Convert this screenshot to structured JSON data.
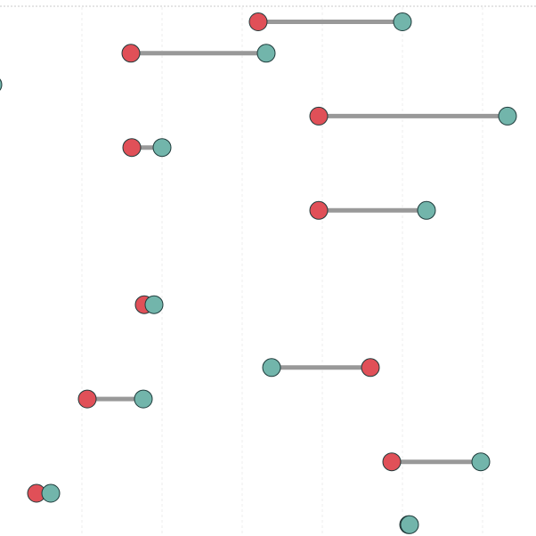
{
  "chart_data": {
    "type": "dumbbell",
    "x_range": [
      0,
      602
    ],
    "gridlines_x": [
      92,
      182,
      272,
      362,
      452,
      542
    ],
    "grid": true,
    "legend": "none",
    "colors": {
      "start": "#e05058",
      "end": "#72b5ab",
      "connector": "#999999"
    },
    "rows": [
      {
        "y_index": 0,
        "start": 290,
        "end": 452
      },
      {
        "y_index": 1,
        "start": 147,
        "end": 299
      },
      {
        "y_index": 2,
        "start": null,
        "end": -8
      },
      {
        "y_index": 3,
        "start": 358,
        "end": 570
      },
      {
        "y_index": 4,
        "start": 148,
        "end": 182
      },
      {
        "y_index": 6,
        "start": 358,
        "end": 479
      },
      {
        "y_index": 9,
        "start": 162,
        "end": 173
      },
      {
        "y_index": 11,
        "start": 416,
        "end": 305
      },
      {
        "y_index": 12,
        "start": 98,
        "end": 161
      },
      {
        "y_index": 14,
        "start": 440,
        "end": 540
      },
      {
        "y_index": 15,
        "start": 41,
        "end": 57
      },
      {
        "y_index": 16,
        "start": 459,
        "end": 460
      }
    ]
  }
}
